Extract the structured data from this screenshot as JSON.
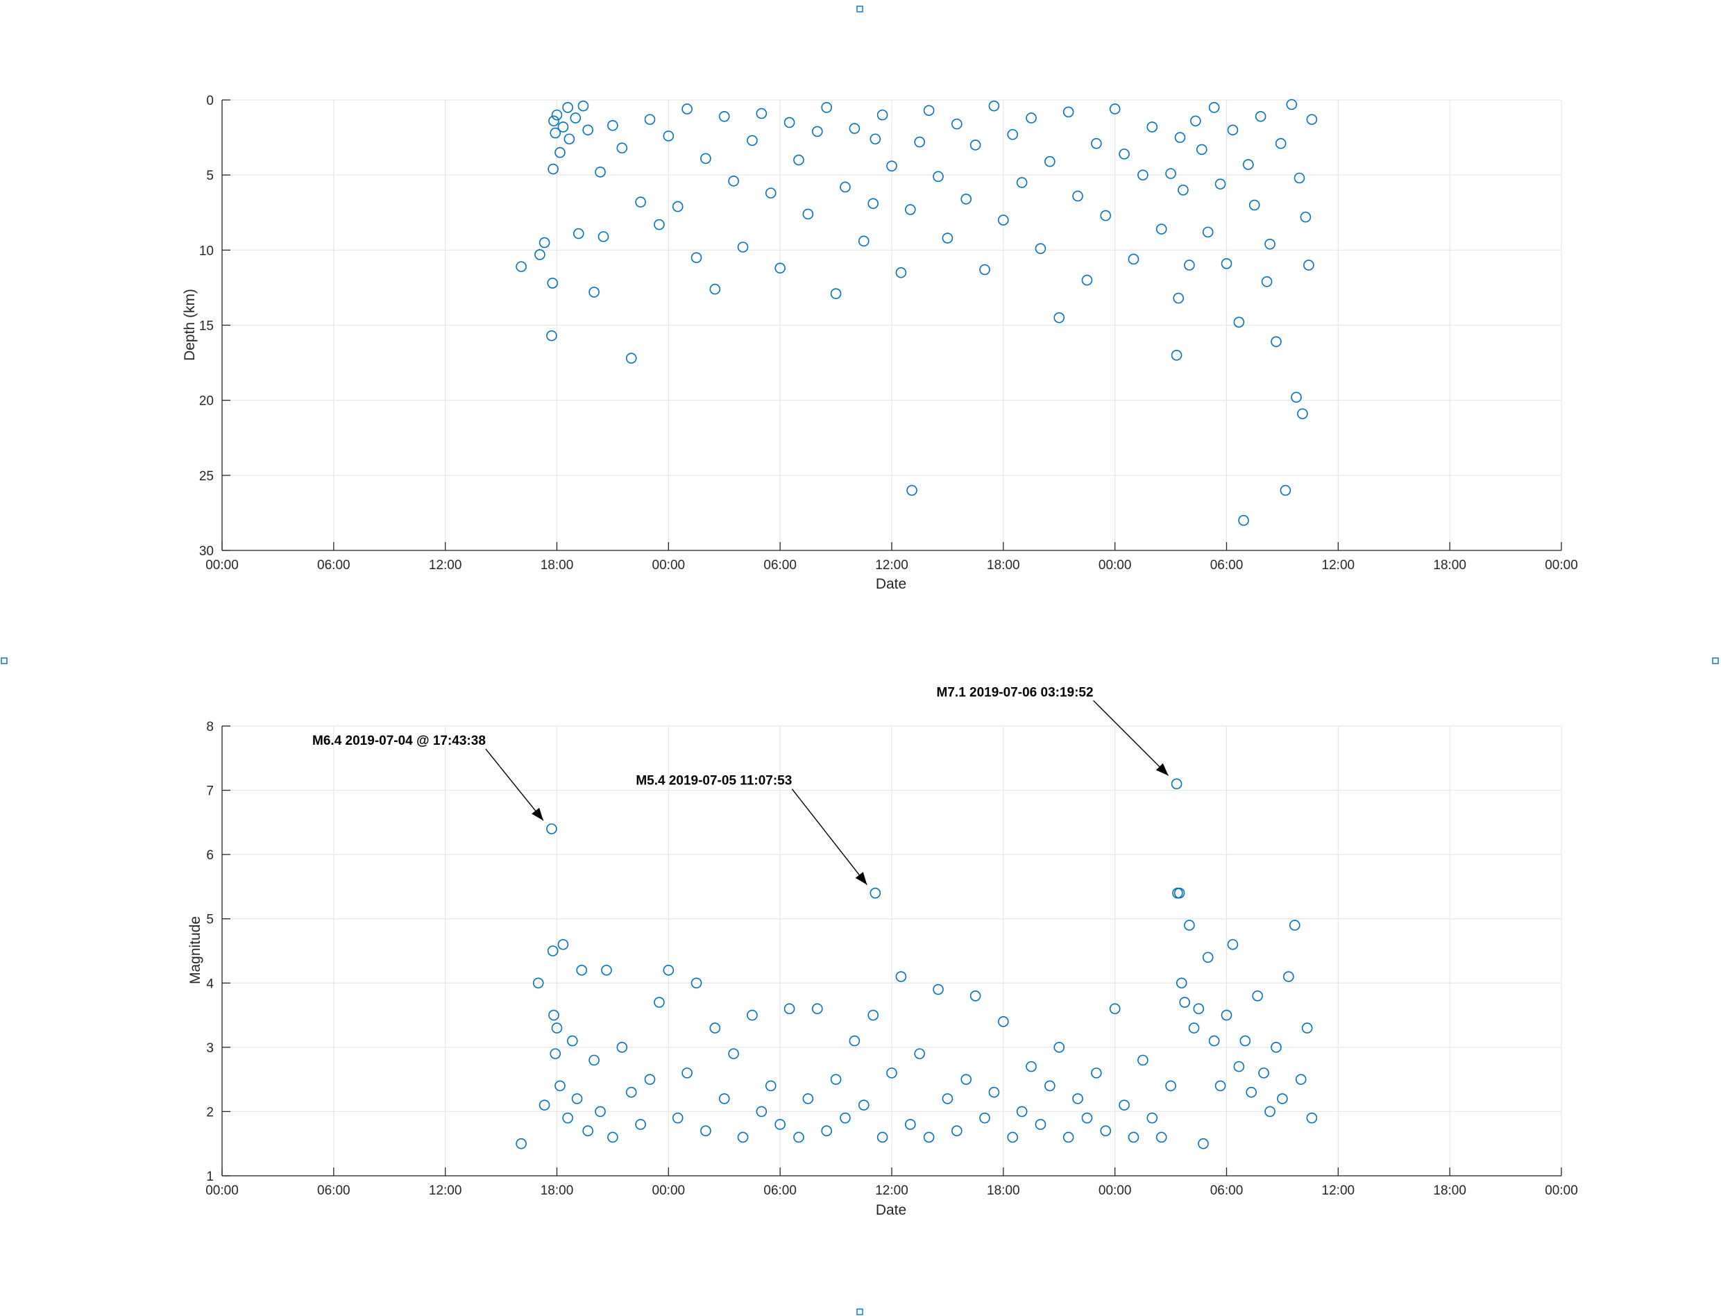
{
  "colors": {
    "marker": "#0072BD",
    "handle": "#0072BD"
  },
  "chart_data": [
    {
      "type": "scatter",
      "xlabel": "Date",
      "ylabel": "Depth (km)",
      "y_reversed": true,
      "xlim": [
        "2019-07-04 00:00",
        "2019-07-07 00:00"
      ],
      "ylim": [
        0,
        30
      ],
      "yticks": [
        0,
        5,
        10,
        15,
        20,
        25,
        30
      ],
      "xtick_labels": [
        "00:00",
        "06:00",
        "12:00",
        "18:00",
        "00:00",
        "06:00",
        "12:00",
        "18:00",
        "00:00",
        "06:00",
        "12:00",
        "18:00",
        "00:00"
      ],
      "grid": true,
      "series": [
        {
          "x": [
            "2019-07-04 16:05",
            "2019-07-04 17:05",
            "2019-07-04 17:20",
            "2019-07-04 17:43",
            "2019-07-04 17:46",
            "2019-07-04 17:48",
            "2019-07-04 17:50",
            "2019-07-04 17:55",
            "2019-07-04 18:00",
            "2019-07-04 18:10",
            "2019-07-04 18:20",
            "2019-07-04 18:35",
            "2019-07-04 18:40",
            "2019-07-04 19:00",
            "2019-07-04 19:10",
            "2019-07-04 19:25",
            "2019-07-04 19:40",
            "2019-07-04 20:00",
            "2019-07-04 20:20",
            "2019-07-04 20:30",
            "2019-07-04 21:00",
            "2019-07-04 21:30",
            "2019-07-04 22:00",
            "2019-07-04 22:30",
            "2019-07-04 23:00",
            "2019-07-04 23:30",
            "2019-07-05 00:00",
            "2019-07-05 00:30",
            "2019-07-05 01:00",
            "2019-07-05 01:30",
            "2019-07-05 02:00",
            "2019-07-05 02:30",
            "2019-07-05 03:00",
            "2019-07-05 03:30",
            "2019-07-05 04:00",
            "2019-07-05 04:30",
            "2019-07-05 05:00",
            "2019-07-05 05:30",
            "2019-07-05 06:00",
            "2019-07-05 06:30",
            "2019-07-05 07:00",
            "2019-07-05 07:30",
            "2019-07-05 08:00",
            "2019-07-05 08:30",
            "2019-07-05 09:00",
            "2019-07-05 09:30",
            "2019-07-05 10:00",
            "2019-07-05 10:30",
            "2019-07-05 11:00",
            "2019-07-05 11:07",
            "2019-07-05 11:30",
            "2019-07-05 12:00",
            "2019-07-05 12:30",
            "2019-07-05 13:00",
            "2019-07-05 13:05",
            "2019-07-05 13:30",
            "2019-07-05 14:00",
            "2019-07-05 14:30",
            "2019-07-05 15:00",
            "2019-07-05 15:30",
            "2019-07-05 16:00",
            "2019-07-05 16:30",
            "2019-07-05 17:00",
            "2019-07-05 17:30",
            "2019-07-05 18:00",
            "2019-07-05 18:30",
            "2019-07-05 19:00",
            "2019-07-05 19:30",
            "2019-07-05 20:00",
            "2019-07-05 20:30",
            "2019-07-05 21:00",
            "2019-07-05 21:30",
            "2019-07-05 22:00",
            "2019-07-05 22:30",
            "2019-07-05 23:00",
            "2019-07-05 23:30",
            "2019-07-06 00:00",
            "2019-07-06 00:30",
            "2019-07-06 01:00",
            "2019-07-06 01:30",
            "2019-07-06 02:00",
            "2019-07-06 02:30",
            "2019-07-06 03:00",
            "2019-07-06 03:19",
            "2019-07-06 03:25",
            "2019-07-06 03:30",
            "2019-07-06 03:40",
            "2019-07-06 04:00",
            "2019-07-06 04:20",
            "2019-07-06 04:40",
            "2019-07-06 05:00",
            "2019-07-06 05:20",
            "2019-07-06 05:40",
            "2019-07-06 06:00",
            "2019-07-06 06:20",
            "2019-07-06 06:40",
            "2019-07-06 06:55",
            "2019-07-06 07:10",
            "2019-07-06 07:30",
            "2019-07-06 07:50",
            "2019-07-06 08:10",
            "2019-07-06 08:20",
            "2019-07-06 08:40",
            "2019-07-06 08:55",
            "2019-07-06 09:10",
            "2019-07-06 09:30",
            "2019-07-06 09:45",
            "2019-07-06 09:55",
            "2019-07-06 10:05",
            "2019-07-06 10:15",
            "2019-07-06 10:25",
            "2019-07-06 10:35"
          ],
          "y": [
            11.1,
            10.3,
            9.5,
            15.7,
            12.2,
            4.6,
            1.4,
            2.2,
            1.0,
            3.5,
            1.8,
            0.5,
            2.6,
            1.2,
            8.9,
            0.4,
            2.0,
            12.8,
            4.8,
            9.1,
            1.7,
            3.2,
            17.2,
            6.8,
            1.3,
            8.3,
            2.4,
            7.1,
            0.6,
            10.5,
            3.9,
            12.6,
            1.1,
            5.4,
            9.8,
            2.7,
            0.9,
            6.2,
            11.2,
            1.5,
            4.0,
            7.6,
            2.1,
            0.5,
            12.9,
            5.8,
            1.9,
            9.4,
            6.9,
            2.6,
            1.0,
            4.4,
            11.5,
            7.3,
            26.0,
            2.8,
            0.7,
            5.1,
            9.2,
            1.6,
            6.6,
            3.0,
            11.3,
            0.4,
            8.0,
            2.3,
            5.5,
            1.2,
            9.9,
            4.1,
            14.5,
            0.8,
            6.4,
            12.0,
            2.9,
            7.7,
            0.6,
            3.6,
            10.6,
            5.0,
            1.8,
            8.6,
            4.9,
            17.0,
            13.2,
            2.5,
            6.0,
            11.0,
            1.4,
            3.3,
            8.8,
            0.5,
            5.6,
            10.9,
            2.0,
            14.8,
            28.0,
            4.3,
            7.0,
            1.1,
            12.1,
            9.6,
            16.1,
            2.9,
            26.0,
            0.3,
            19.8,
            5.2,
            20.9,
            7.8,
            11.0,
            1.3
          ]
        }
      ]
    },
    {
      "type": "scatter",
      "xlabel": "Date",
      "ylabel": "Magnitude",
      "xlim": [
        "2019-07-04 00:00",
        "2019-07-07 00:00"
      ],
      "ylim": [
        1,
        8
      ],
      "yticks": [
        1,
        2,
        3,
        4,
        5,
        6,
        7,
        8
      ],
      "xtick_labels": [
        "00:00",
        "06:00",
        "12:00",
        "18:00",
        "00:00",
        "06:00",
        "12:00",
        "18:00",
        "00:00",
        "06:00",
        "12:00",
        "18:00",
        "00:00"
      ],
      "grid": true,
      "series": [
        {
          "x": [
            "2019-07-04 16:05",
            "2019-07-04 17:00",
            "2019-07-04 17:20",
            "2019-07-04 17:43",
            "2019-07-04 17:47",
            "2019-07-04 17:50",
            "2019-07-04 17:55",
            "2019-07-04 18:00",
            "2019-07-04 18:10",
            "2019-07-04 18:20",
            "2019-07-04 18:35",
            "2019-07-04 18:50",
            "2019-07-04 19:05",
            "2019-07-04 19:20",
            "2019-07-04 19:40",
            "2019-07-04 20:00",
            "2019-07-04 20:20",
            "2019-07-04 20:40",
            "2019-07-04 21:00",
            "2019-07-04 21:30",
            "2019-07-04 22:00",
            "2019-07-04 22:30",
            "2019-07-04 23:00",
            "2019-07-04 23:30",
            "2019-07-05 00:00",
            "2019-07-05 00:30",
            "2019-07-05 01:00",
            "2019-07-05 01:30",
            "2019-07-05 02:00",
            "2019-07-05 02:30",
            "2019-07-05 03:00",
            "2019-07-05 03:30",
            "2019-07-05 04:00",
            "2019-07-05 04:30",
            "2019-07-05 05:00",
            "2019-07-05 05:30",
            "2019-07-05 06:00",
            "2019-07-05 06:30",
            "2019-07-05 07:00",
            "2019-07-05 07:30",
            "2019-07-05 08:00",
            "2019-07-05 08:30",
            "2019-07-05 09:00",
            "2019-07-05 09:30",
            "2019-07-05 10:00",
            "2019-07-05 10:30",
            "2019-07-05 11:00",
            "2019-07-05 11:07",
            "2019-07-05 11:30",
            "2019-07-05 12:00",
            "2019-07-05 12:30",
            "2019-07-05 13:00",
            "2019-07-05 13:30",
            "2019-07-05 14:00",
            "2019-07-05 14:30",
            "2019-07-05 15:00",
            "2019-07-05 15:30",
            "2019-07-05 16:00",
            "2019-07-05 16:30",
            "2019-07-05 17:00",
            "2019-07-05 17:30",
            "2019-07-05 18:00",
            "2019-07-05 18:30",
            "2019-07-05 19:00",
            "2019-07-05 19:30",
            "2019-07-05 20:00",
            "2019-07-05 20:30",
            "2019-07-05 21:00",
            "2019-07-05 21:30",
            "2019-07-05 22:00",
            "2019-07-05 22:30",
            "2019-07-05 23:00",
            "2019-07-05 23:30",
            "2019-07-06 00:00",
            "2019-07-06 00:30",
            "2019-07-06 01:00",
            "2019-07-06 01:30",
            "2019-07-06 02:00",
            "2019-07-06 02:30",
            "2019-07-06 03:00",
            "2019-07-06 03:19",
            "2019-07-06 03:22",
            "2019-07-06 03:28",
            "2019-07-06 03:35",
            "2019-07-06 03:45",
            "2019-07-06 04:00",
            "2019-07-06 04:15",
            "2019-07-06 04:30",
            "2019-07-06 04:45",
            "2019-07-06 05:00",
            "2019-07-06 05:20",
            "2019-07-06 05:40",
            "2019-07-06 06:00",
            "2019-07-06 06:20",
            "2019-07-06 06:40",
            "2019-07-06 07:00",
            "2019-07-06 07:20",
            "2019-07-06 07:40",
            "2019-07-06 08:00",
            "2019-07-06 08:20",
            "2019-07-06 08:40",
            "2019-07-06 09:00",
            "2019-07-06 09:20",
            "2019-07-06 09:40",
            "2019-07-06 10:00",
            "2019-07-06 10:20",
            "2019-07-06 10:35"
          ],
          "y": [
            1.5,
            4.0,
            2.1,
            6.4,
            4.5,
            3.5,
            2.9,
            3.3,
            2.4,
            4.6,
            1.9,
            3.1,
            2.2,
            4.2,
            1.7,
            2.8,
            2.0,
            4.2,
            1.6,
            3.0,
            2.3,
            1.8,
            2.5,
            3.7,
            4.2,
            1.9,
            2.6,
            4.0,
            1.7,
            3.3,
            2.2,
            2.9,
            1.6,
            3.5,
            2.0,
            2.4,
            1.8,
            3.6,
            1.6,
            2.2,
            3.6,
            1.7,
            2.5,
            1.9,
            3.1,
            2.1,
            3.5,
            5.4,
            1.6,
            2.6,
            4.1,
            1.8,
            2.9,
            1.6,
            3.9,
            2.2,
            1.7,
            2.5,
            3.8,
            1.9,
            2.3,
            3.4,
            1.6,
            2.0,
            2.7,
            1.8,
            2.4,
            3.0,
            1.6,
            2.2,
            1.9,
            2.6,
            1.7,
            3.6,
            2.1,
            1.6,
            2.8,
            1.9,
            1.6,
            2.4,
            7.1,
            5.4,
            5.4,
            4.0,
            3.7,
            4.9,
            3.3,
            3.6,
            1.5,
            4.4,
            3.1,
            2.4,
            3.5,
            4.6,
            2.7,
            3.1,
            2.3,
            3.8,
            2.6,
            2.0,
            3.0,
            2.2,
            4.1,
            4.9,
            2.5,
            3.3,
            1.9
          ]
        }
      ],
      "annotations": [
        {
          "text": "M6.4 2019-07-04 @ 17:43:38",
          "x": "2019-07-04 17:43",
          "y": 6.4
        },
        {
          "text": "M5.4 2019-07-05 11:07:53",
          "x": "2019-07-05 11:07",
          "y": 5.4
        },
        {
          "text": "M7.1 2019-07-06 03:19:52",
          "x": "2019-07-06 03:19",
          "y": 7.1
        }
      ]
    }
  ]
}
